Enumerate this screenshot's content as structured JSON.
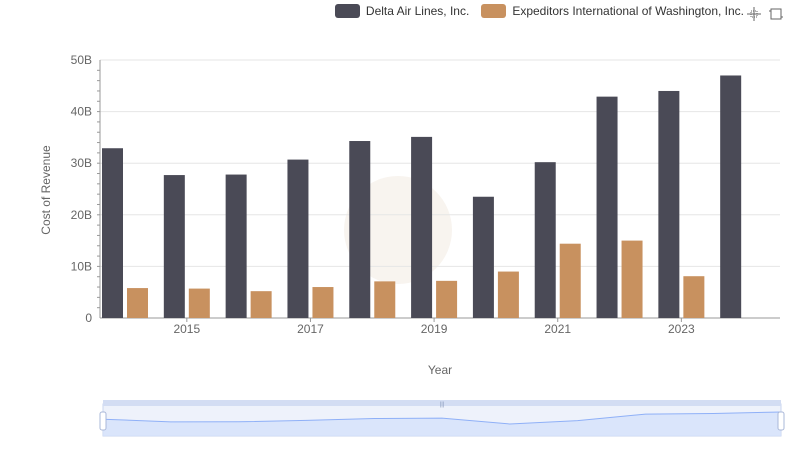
{
  "chart_data": {
    "type": "bar",
    "xlabel": "Year",
    "ylabel": "Cost of Revenue",
    "ylim": [
      0,
      50000000000
    ],
    "yticks": [
      "0",
      "10B",
      "20B",
      "30B",
      "40B",
      "50B"
    ],
    "categories": [
      "2014",
      "2015",
      "2016",
      "2017",
      "2018",
      "2019",
      "2020",
      "2021",
      "2022",
      "2023",
      "2024"
    ],
    "xtick_labels": [
      "2015",
      "2017",
      "2019",
      "2021",
      "2023"
    ],
    "grid": true,
    "legend_position": "top-right",
    "series": [
      {
        "name": "Delta Air Lines, Inc.",
        "color": "#4a4a56",
        "values": [
          32900000000,
          27700000000,
          27800000000,
          30700000000,
          34300000000,
          35100000000,
          23500000000,
          30200000000,
          42900000000,
          44000000000,
          47000000000
        ]
      },
      {
        "name": "Expeditors International of Washington, Inc.",
        "color": "#c8915f",
        "values": [
          5800000000,
          5700000000,
          5200000000,
          6000000000,
          7100000000,
          7200000000,
          9000000000,
          14400000000,
          15000000000,
          8100000000,
          null
        ]
      }
    ]
  },
  "legend": {
    "items": [
      {
        "label": "Delta Air Lines, Inc.",
        "color": "#4a4a56"
      },
      {
        "label": "Expeditors International of Washington, Inc.",
        "color": "#c8915f"
      }
    ]
  },
  "toolbox": {
    "zoom_icon": "crosshair-zoom-icon",
    "reset_icon": "restore-icon"
  },
  "slider": {
    "fill_color": "#d5e1fb",
    "line_color": "#8fb0f7"
  }
}
